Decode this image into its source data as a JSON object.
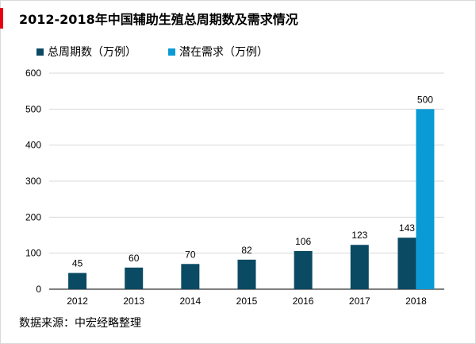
{
  "title": "2012-2018年中国辅助生殖总周期数及需求情况",
  "source": "数据来源：中宏经略整理",
  "colors": {
    "accent": "#e60012",
    "series_total": "#0b4a63",
    "series_demand": "#0a9bd6",
    "grid": "#d9d9d9",
    "axis": "#000000"
  },
  "chart_data": {
    "type": "bar",
    "title": "2012-2018年中国辅助生殖总周期数及需求情况",
    "categories": [
      "2012",
      "2013",
      "2014",
      "2015",
      "2016",
      "2017",
      "2018"
    ],
    "series": [
      {
        "name": "总周期数（万例）",
        "values": [
          45,
          60,
          70,
          82,
          106,
          123,
          143
        ],
        "labels": [
          "45",
          "60",
          "70",
          "82",
          "106",
          "123",
          "143"
        ]
      },
      {
        "name": "潜在需求（万例）",
        "values": [
          null,
          null,
          null,
          null,
          null,
          null,
          500
        ],
        "labels": [
          "",
          "",
          "",
          "",
          "",
          "",
          "500"
        ]
      }
    ],
    "yticks": [
      "0",
      "100",
      "200",
      "300",
      "400",
      "500",
      "600"
    ],
    "ylim": [
      0,
      600
    ],
    "grid": true,
    "legend": "top-left",
    "xlabel": "",
    "ylabel": ""
  }
}
